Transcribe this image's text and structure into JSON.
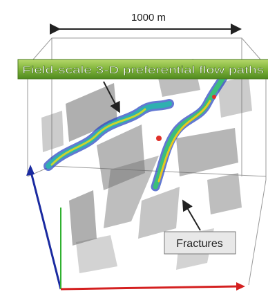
{
  "dimension": {
    "label": "1000 m"
  },
  "banner": {
    "label": "Field-scale 3-D preferential flow paths"
  },
  "callout": {
    "label": "Fractures"
  }
}
